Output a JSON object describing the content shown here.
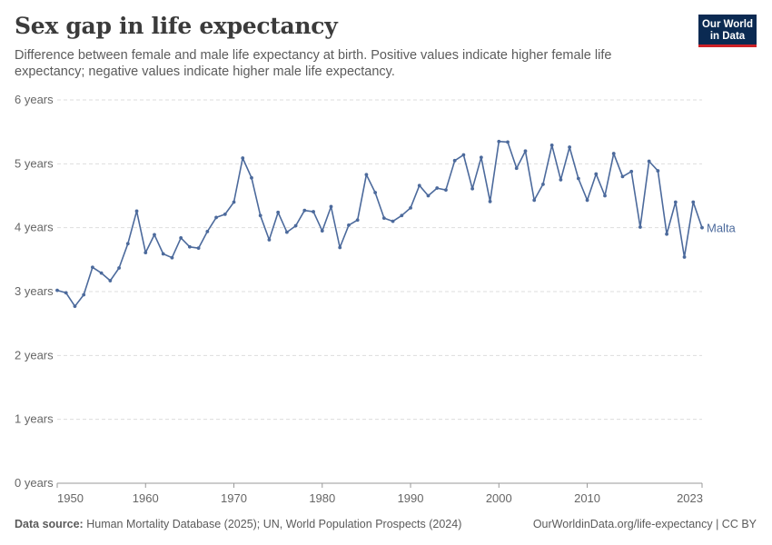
{
  "header": {
    "title": "Sex gap in life expectancy",
    "subtitle": "Difference between female and male life expectancy at birth. Positive values indicate higher female life expectancy; negative values indicate higher male life expectancy."
  },
  "logo": {
    "line1": "Our World",
    "line2": "in Data"
  },
  "footer": {
    "source_label": "Data source:",
    "source_text": "Human Mortality Database (2025); UN, World Population Prospects (2024)",
    "url_text": "OurWorldinData.org/life-expectancy | CC BY"
  },
  "colors": {
    "series": "#4c6a9c",
    "grid": "#dddddd",
    "axis_text": "#666666",
    "logo_bg": "#0b2a52",
    "logo_accent": "#ce2127"
  },
  "chart_data": {
    "type": "line",
    "ylim": [
      0,
      6
    ],
    "xlim": [
      1950,
      2023
    ],
    "y_ticks": [
      0,
      1,
      2,
      3,
      4,
      5,
      6
    ],
    "y_tick_labels": [
      "0 years",
      "1 years",
      "2 years",
      "3 years",
      "4 years",
      "5 years",
      "6 years"
    ],
    "x_ticks": [
      1950,
      1960,
      1970,
      1980,
      1990,
      2000,
      2010,
      2023
    ],
    "x_tick_labels": [
      "1950",
      "1960",
      "1970",
      "1980",
      "1990",
      "2000",
      "2010",
      "2023"
    ],
    "grid": "horizontal dashed",
    "series": [
      {
        "name": "Malta",
        "x": [
          1950,
          1951,
          1952,
          1953,
          1954,
          1955,
          1956,
          1957,
          1958,
          1959,
          1960,
          1961,
          1962,
          1963,
          1964,
          1965,
          1966,
          1967,
          1968,
          1969,
          1970,
          1971,
          1972,
          1973,
          1974,
          1975,
          1976,
          1977,
          1978,
          1979,
          1980,
          1981,
          1982,
          1983,
          1984,
          1985,
          1986,
          1987,
          1988,
          1989,
          1990,
          1991,
          1992,
          1993,
          1994,
          1995,
          1996,
          1997,
          1998,
          1999,
          2000,
          2001,
          2002,
          2003,
          2004,
          2005,
          2006,
          2007,
          2008,
          2009,
          2010,
          2011,
          2012,
          2013,
          2014,
          2015,
          2016,
          2017,
          2018,
          2019,
          2020,
          2021,
          2022,
          2023
        ],
        "values": [
          3.02,
          2.98,
          2.77,
          2.95,
          3.38,
          3.29,
          3.17,
          3.37,
          3.75,
          4.26,
          3.61,
          3.89,
          3.59,
          3.53,
          3.84,
          3.7,
          3.68,
          3.94,
          4.16,
          4.21,
          4.4,
          5.09,
          4.78,
          4.19,
          3.81,
          4.24,
          3.93,
          4.03,
          4.27,
          4.25,
          3.95,
          4.33,
          3.69,
          4.04,
          4.12,
          4.83,
          4.55,
          4.15,
          4.1,
          4.19,
          4.31,
          4.66,
          4.5,
          4.62,
          4.59,
          5.05,
          5.14,
          4.61,
          5.1,
          4.41,
          5.35,
          5.34,
          4.93,
          5.2,
          4.43,
          4.68,
          5.29,
          4.75,
          5.26,
          4.77,
          4.43,
          4.84,
          4.5,
          5.16,
          4.8,
          4.88,
          4.01,
          5.04,
          4.89,
          3.9,
          4.4,
          3.54,
          4.4,
          4.0
        ]
      }
    ]
  }
}
